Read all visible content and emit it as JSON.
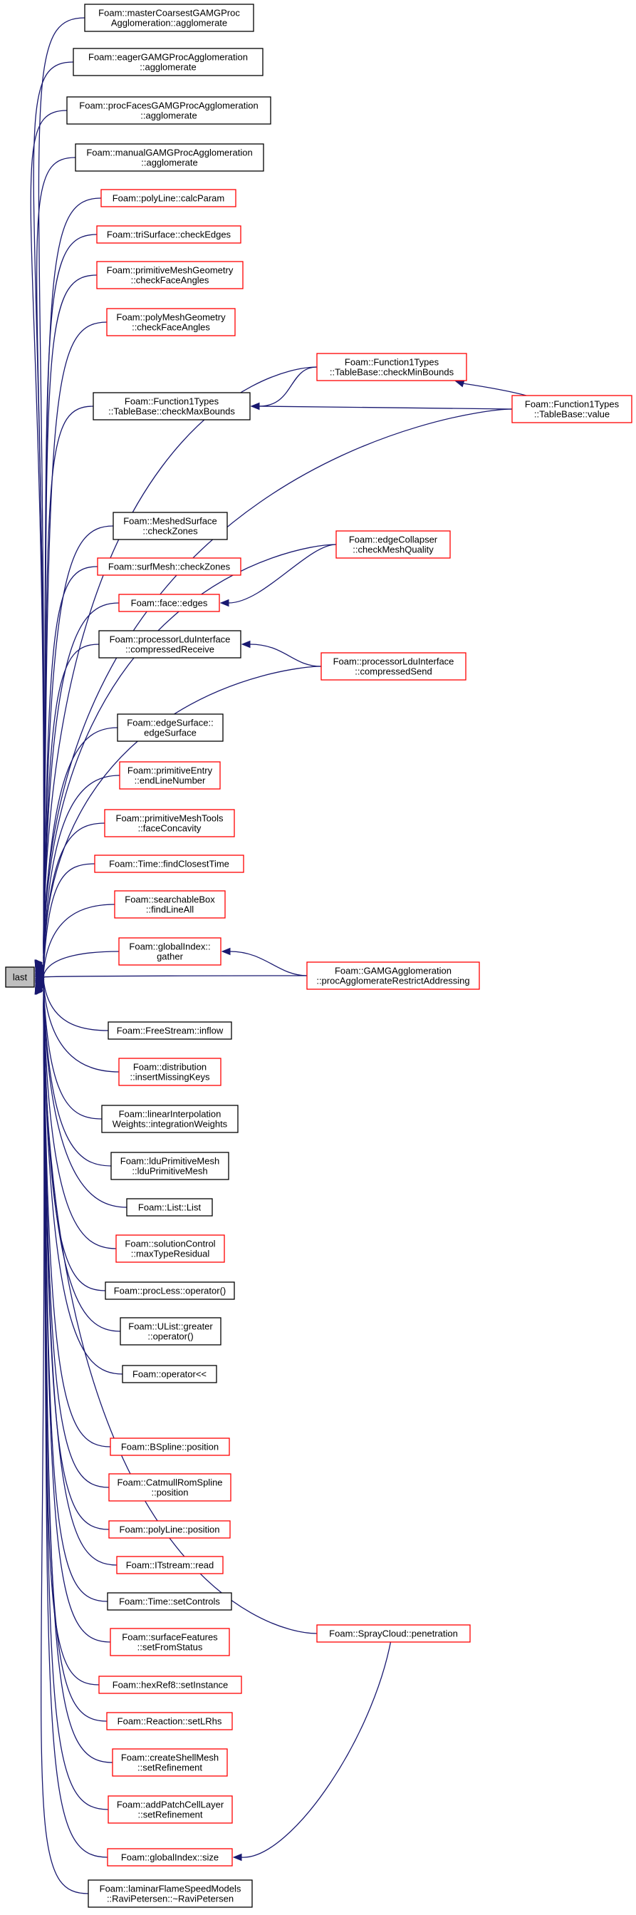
{
  "colors": {
    "edge": "#191970",
    "box_black": "#000000",
    "box_red": "#ff0000",
    "root_fill": "#bfbfbf",
    "background": "#ffffff"
  },
  "root": {
    "id": "last",
    "lines": [
      "last"
    ]
  },
  "nodes": [
    {
      "id": "n1",
      "lines": [
        "Foam::masterCoarsestGAMGProc",
        "Agglomeration::agglomerate"
      ],
      "color": "black"
    },
    {
      "id": "n2",
      "lines": [
        "Foam::eagerGAMGProcAgglomeration",
        "::agglomerate"
      ],
      "color": "black"
    },
    {
      "id": "n3",
      "lines": [
        "Foam::procFacesGAMGProcAgglomeration",
        "::agglomerate"
      ],
      "color": "black"
    },
    {
      "id": "n4",
      "lines": [
        "Foam::manualGAMGProcAgglomeration",
        "::agglomerate"
      ],
      "color": "black"
    },
    {
      "id": "n5",
      "lines": [
        "Foam::polyLine::calcParam"
      ],
      "color": "red"
    },
    {
      "id": "n6",
      "lines": [
        "Foam::triSurface::checkEdges"
      ],
      "color": "red"
    },
    {
      "id": "n7",
      "lines": [
        "Foam::primitiveMeshGeometry",
        "::checkFaceAngles"
      ],
      "color": "red"
    },
    {
      "id": "n8",
      "lines": [
        "Foam::polyMeshGeometry",
        "::checkFaceAngles"
      ],
      "color": "red"
    },
    {
      "id": "n9",
      "lines": [
        "Foam::Function1Types",
        "::TableBase::checkMinBounds"
      ],
      "color": "red"
    },
    {
      "id": "n10",
      "lines": [
        "Foam::Function1Types",
        "::TableBase::checkMaxBounds"
      ],
      "color": "black"
    },
    {
      "id": "n11",
      "lines": [
        "Foam::Function1Types",
        "::TableBase::value"
      ],
      "color": "red"
    },
    {
      "id": "n12",
      "lines": [
        "Foam::MeshedSurface",
        "::checkZones"
      ],
      "color": "black"
    },
    {
      "id": "n13",
      "lines": [
        "Foam::edgeCollapser",
        "::checkMeshQuality"
      ],
      "color": "red"
    },
    {
      "id": "n14",
      "lines": [
        "Foam::surfMesh::checkZones"
      ],
      "color": "red"
    },
    {
      "id": "n15",
      "lines": [
        "Foam::face::edges"
      ],
      "color": "red"
    },
    {
      "id": "n16",
      "lines": [
        "Foam::processorLduInterface",
        "::compressedReceive"
      ],
      "color": "black"
    },
    {
      "id": "n17",
      "lines": [
        "Foam::processorLduInterface",
        "::compressedSend"
      ],
      "color": "red"
    },
    {
      "id": "n18",
      "lines": [
        "Foam::edgeSurface::",
        "edgeSurface"
      ],
      "color": "black"
    },
    {
      "id": "n19",
      "lines": [
        "Foam::primitiveEntry",
        "::endLineNumber"
      ],
      "color": "red"
    },
    {
      "id": "n20",
      "lines": [
        "Foam::primitiveMeshTools",
        "::faceConcavity"
      ],
      "color": "red"
    },
    {
      "id": "n21",
      "lines": [
        "Foam::Time::findClosestTime"
      ],
      "color": "red"
    },
    {
      "id": "n22",
      "lines": [
        "Foam::searchableBox",
        "::findLineAll"
      ],
      "color": "red"
    },
    {
      "id": "n23",
      "lines": [
        "Foam::globalIndex::",
        "gather"
      ],
      "color": "red"
    },
    {
      "id": "n24",
      "lines": [
        "Foam::GAMGAgglomeration",
        "::procAgglomerateRestrictAddressing"
      ],
      "color": "red"
    },
    {
      "id": "n25",
      "lines": [
        "Foam::FreeStream::inflow"
      ],
      "color": "black"
    },
    {
      "id": "n26",
      "lines": [
        "Foam::distribution",
        "::insertMissingKeys"
      ],
      "color": "red"
    },
    {
      "id": "n27",
      "lines": [
        "Foam::linearInterpolation",
        "Weights::integrationWeights"
      ],
      "color": "black"
    },
    {
      "id": "n28",
      "lines": [
        "Foam::lduPrimitiveMesh",
        "::lduPrimitiveMesh"
      ],
      "color": "black"
    },
    {
      "id": "n29",
      "lines": [
        "Foam::List::List"
      ],
      "color": "black"
    },
    {
      "id": "n30",
      "lines": [
        "Foam::solutionControl",
        "::maxTypeResidual"
      ],
      "color": "red"
    },
    {
      "id": "n31",
      "lines": [
        "Foam::procLess::operator()"
      ],
      "color": "black"
    },
    {
      "id": "n32",
      "lines": [
        "Foam::UList::greater",
        "::operator()"
      ],
      "color": "black"
    },
    {
      "id": "n33",
      "lines": [
        "Foam::operator<<"
      ],
      "color": "black"
    },
    {
      "id": "n34",
      "lines": [
        "Foam::BSpline::position"
      ],
      "color": "red"
    },
    {
      "id": "n35",
      "lines": [
        "Foam::CatmullRomSpline",
        "::position"
      ],
      "color": "red"
    },
    {
      "id": "n36",
      "lines": [
        "Foam::polyLine::position"
      ],
      "color": "red"
    },
    {
      "id": "n37",
      "lines": [
        "Foam::ITstream::read"
      ],
      "color": "red"
    },
    {
      "id": "n38",
      "lines": [
        "Foam::Time::setControls"
      ],
      "color": "black"
    },
    {
      "id": "n39",
      "lines": [
        "Foam::surfaceFeatures",
        "::setFromStatus"
      ],
      "color": "red"
    },
    {
      "id": "n40",
      "lines": [
        "Foam::SprayCloud::penetration"
      ],
      "color": "red"
    },
    {
      "id": "n41",
      "lines": [
        "Foam::hexRef8::setInstance"
      ],
      "color": "red"
    },
    {
      "id": "n42",
      "lines": [
        "Foam::Reaction::setLRhs"
      ],
      "color": "red"
    },
    {
      "id": "n43",
      "lines": [
        "Foam::createShellMesh",
        "::setRefinement"
      ],
      "color": "red"
    },
    {
      "id": "n44",
      "lines": [
        "Foam::addPatchCellLayer",
        "::setRefinement"
      ],
      "color": "red"
    },
    {
      "id": "n45",
      "lines": [
        "Foam::globalIndex::size"
      ],
      "color": "red"
    },
    {
      "id": "n46",
      "lines": [
        "Foam::laminarFlameSpeedModels",
        "::RaviPetersen::~RaviPetersen"
      ],
      "color": "black"
    }
  ],
  "edges": [
    [
      "n1",
      "last"
    ],
    [
      "n2",
      "last"
    ],
    [
      "n3",
      "last"
    ],
    [
      "n4",
      "last"
    ],
    [
      "n5",
      "last"
    ],
    [
      "n6",
      "last"
    ],
    [
      "n7",
      "last"
    ],
    [
      "n8",
      "last"
    ],
    [
      "n9",
      "last"
    ],
    [
      "n10",
      "last"
    ],
    [
      "n11",
      "last"
    ],
    [
      "n12",
      "last"
    ],
    [
      "n13",
      "last"
    ],
    [
      "n14",
      "last"
    ],
    [
      "n15",
      "last"
    ],
    [
      "n16",
      "last"
    ],
    [
      "n17",
      "last"
    ],
    [
      "n18",
      "last"
    ],
    [
      "n19",
      "last"
    ],
    [
      "n20",
      "last"
    ],
    [
      "n21",
      "last"
    ],
    [
      "n22",
      "last"
    ],
    [
      "n23",
      "last"
    ],
    [
      "n24",
      "last"
    ],
    [
      "n25",
      "last"
    ],
    [
      "n26",
      "last"
    ],
    [
      "n27",
      "last"
    ],
    [
      "n28",
      "last"
    ],
    [
      "n29",
      "last"
    ],
    [
      "n30",
      "last"
    ],
    [
      "n31",
      "last"
    ],
    [
      "n32",
      "last"
    ],
    [
      "n33",
      "last"
    ],
    [
      "n34",
      "last"
    ],
    [
      "n35",
      "last"
    ],
    [
      "n36",
      "last"
    ],
    [
      "n37",
      "last"
    ],
    [
      "n38",
      "last"
    ],
    [
      "n39",
      "last"
    ],
    [
      "n40",
      "last"
    ],
    [
      "n41",
      "last"
    ],
    [
      "n42",
      "last"
    ],
    [
      "n43",
      "last"
    ],
    [
      "n44",
      "last"
    ],
    [
      "n45",
      "last"
    ],
    [
      "n46",
      "last"
    ],
    [
      "n9",
      "n10"
    ],
    [
      "n11",
      "n10"
    ],
    [
      "n11",
      "n9"
    ],
    [
      "n13",
      "n15"
    ],
    [
      "n17",
      "n16"
    ],
    [
      "n24",
      "n23"
    ],
    [
      "n40",
      "n45"
    ]
  ]
}
